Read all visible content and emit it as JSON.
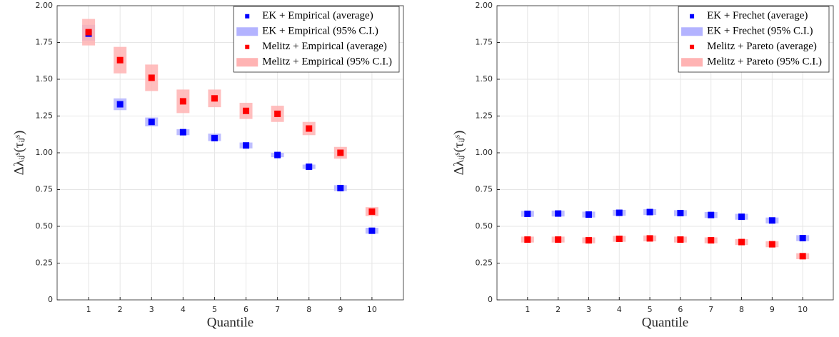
{
  "chart_data": [
    {
      "type": "scatter",
      "xlabel": "Quantile",
      "ylabel": "Δλᵢⱼˢ(τᵢⱼˢ)",
      "x": [
        1,
        2,
        3,
        4,
        5,
        6,
        7,
        8,
        9,
        10
      ],
      "xlim": [
        0,
        11
      ],
      "xticks": [
        1,
        2,
        3,
        4,
        5,
        6,
        7,
        8,
        9,
        10
      ],
      "ylim": [
        0,
        2
      ],
      "yticks": [
        0,
        0.25,
        {
          "value": 0.5,
          "label": "0.50"
        },
        0.75,
        {
          "value": 1,
          "label": "1.00"
        },
        1.25,
        {
          "value": 1.5,
          "label": "1.50"
        },
        1.75,
        {
          "value": 2,
          "label": "2.00"
        }
      ],
      "grid": true,
      "legend": "upper right",
      "series": [
        {
          "name": "EK + Empirical (average)",
          "color": "#0000ff",
          "values": [
            1.81,
            1.33,
            1.21,
            1.14,
            1.1,
            1.05,
            0.985,
            0.905,
            0.76,
            0.47
          ]
        },
        {
          "name": "EK + Empirical (95% C.I.)",
          "color": "#b3b3ff",
          "low": [
            1.76,
            1.29,
            1.18,
            1.12,
            1.08,
            1.03,
            0.97,
            0.89,
            0.74,
            0.45
          ],
          "high": [
            1.87,
            1.37,
            1.24,
            1.16,
            1.13,
            1.07,
            1.0,
            0.92,
            0.78,
            0.49
          ]
        },
        {
          "name": "Melitz + Empirical (average)",
          "color": "#ff0000",
          "values": [
            1.82,
            1.63,
            1.51,
            1.35,
            1.37,
            1.285,
            1.265,
            1.165,
            1.0,
            0.6
          ]
        },
        {
          "name": "Melitz + Empirical (95% C.I.)",
          "color": "#ffb3b3",
          "low": [
            1.73,
            1.54,
            1.42,
            1.27,
            1.31,
            1.23,
            1.21,
            1.12,
            0.96,
            0.57
          ],
          "high": [
            1.91,
            1.72,
            1.6,
            1.43,
            1.43,
            1.34,
            1.32,
            1.21,
            1.04,
            0.63
          ]
        }
      ]
    },
    {
      "type": "scatter",
      "xlabel": "Quantile",
      "ylabel": "Δλᵢⱼˢ(τᵢⱼˢ)",
      "x": [
        1,
        2,
        3,
        4,
        5,
        6,
        7,
        8,
        9,
        10
      ],
      "xlim": [
        0,
        11
      ],
      "xticks": [
        1,
        2,
        3,
        4,
        5,
        6,
        7,
        8,
        9,
        10
      ],
      "ylim": [
        0,
        2
      ],
      "yticks": [
        0,
        0.25,
        {
          "value": 0.5,
          "label": "0.50"
        },
        0.75,
        {
          "value": 1,
          "label": "1.00"
        },
        1.25,
        {
          "value": 1.5,
          "label": "1.50"
        },
        1.75,
        {
          "value": 2,
          "label": "2.00"
        }
      ],
      "grid": true,
      "legend": "upper right",
      "series": [
        {
          "name": "EK + Frechet (average)",
          "color": "#0000ff",
          "values": [
            0.585,
            0.587,
            0.58,
            0.592,
            0.597,
            0.59,
            0.577,
            0.565,
            0.54,
            0.42
          ]
        },
        {
          "name": "EK + Frechet (95% C.I.)",
          "color": "#b3b3ff",
          "low": [
            0.565,
            0.567,
            0.56,
            0.572,
            0.577,
            0.57,
            0.557,
            0.545,
            0.52,
            0.4
          ],
          "high": [
            0.605,
            0.607,
            0.6,
            0.612,
            0.617,
            0.61,
            0.597,
            0.585,
            0.56,
            0.44
          ]
        },
        {
          "name": "Melitz + Pareto (average)",
          "color": "#ff0000",
          "values": [
            0.41,
            0.41,
            0.405,
            0.415,
            0.418,
            0.41,
            0.405,
            0.393,
            0.378,
            0.297
          ]
        },
        {
          "name": "Melitz + Pareto (95% C.I.)",
          "color": "#ffb3b3",
          "low": [
            0.39,
            0.39,
            0.385,
            0.395,
            0.398,
            0.39,
            0.385,
            0.373,
            0.358,
            0.277
          ],
          "high": [
            0.43,
            0.43,
            0.425,
            0.435,
            0.438,
            0.43,
            0.425,
            0.413,
            0.398,
            0.317
          ]
        }
      ]
    }
  ]
}
